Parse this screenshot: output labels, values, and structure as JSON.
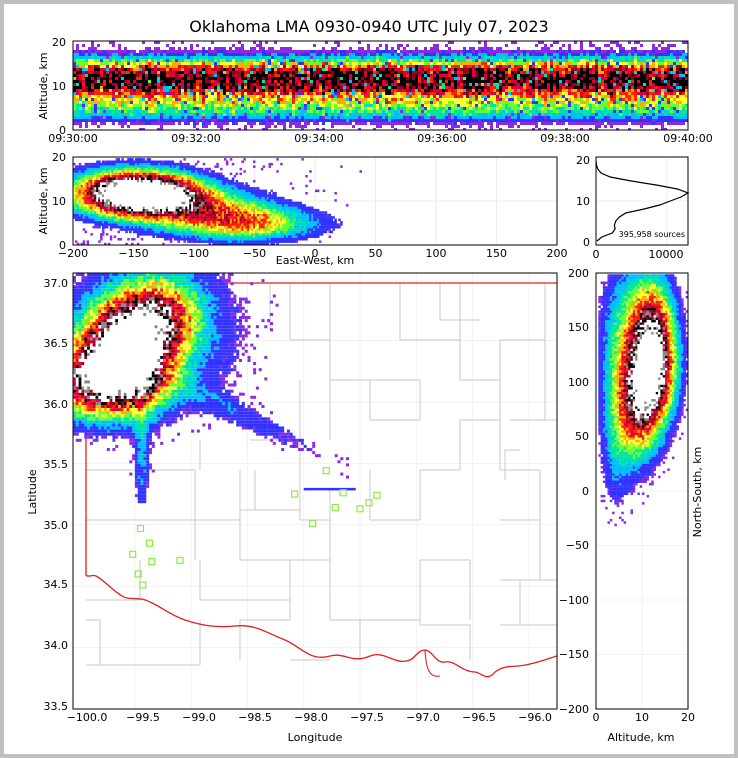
{
  "title": "Oklahoma LMA 0930-0940 UTC July 07, 2023",
  "chart_data": [
    {
      "panel": "time-altitude",
      "type": "heatmap",
      "ylabel": "Altitude, km",
      "ylim": [
        0,
        20
      ],
      "yticks": [
        "0",
        "10",
        "20"
      ],
      "xticks": [
        "09:30:00",
        "09:32:00",
        "09:34:00",
        "09:36:00",
        "09:38:00",
        "09:40:00"
      ],
      "density_profile_altitude_km": [
        0,
        2,
        4,
        6,
        8,
        10,
        12,
        14,
        16,
        18,
        20
      ],
      "density_profile_relative": [
        0.0,
        0.08,
        0.3,
        0.45,
        0.6,
        0.9,
        1.0,
        0.8,
        0.35,
        0.08,
        0.0
      ]
    },
    {
      "panel": "east-west-altitude",
      "type": "heatmap",
      "xlabel": "East-West, km",
      "ylabel": "Altitude, km",
      "xlim": [
        -200,
        200
      ],
      "ylim": [
        0,
        20
      ],
      "xticks": [
        "−200",
        "−150",
        "−100",
        "−50",
        "0",
        "50",
        "100",
        "150",
        "200"
      ],
      "yticks": [
        "0",
        "10",
        "20"
      ],
      "cores": [
        {
          "x": -140,
          "y": 12,
          "strength": 1.0
        },
        {
          "x": -165,
          "y": 12,
          "strength": 0.7
        },
        {
          "x": -110,
          "y": 10,
          "strength": 0.5
        },
        {
          "x": -60,
          "y": 7,
          "strength": 0.3
        }
      ]
    },
    {
      "panel": "altitude-histogram",
      "type": "line",
      "xticks": [
        "0",
        "10000"
      ],
      "yticks": [
        "0",
        "10",
        "20"
      ],
      "xlim": [
        0,
        13000
      ],
      "ylim": [
        0,
        20
      ],
      "annotation": "395,958 sources",
      "altitude_km": [
        0,
        1,
        2,
        3,
        4,
        5,
        6,
        7,
        8,
        9,
        10,
        11,
        12,
        13,
        14,
        15,
        16,
        17,
        18,
        19,
        20
      ],
      "counts": [
        150,
        800,
        2300,
        2700,
        2600,
        2800,
        3300,
        4200,
        6800,
        9000,
        10500,
        12000,
        13000,
        11500,
        8500,
        5000,
        2000,
        700,
        250,
        60,
        10
      ]
    },
    {
      "panel": "plan-view",
      "type": "heatmap",
      "xlabel": "Longitude",
      "ylabel": "Latitude",
      "xlim": [
        -100.05,
        -95.75
      ],
      "ylim": [
        33.5,
        37.05
      ],
      "xticks": [
        "−100.0",
        "−99.5",
        "−99.0",
        "−98.5",
        "−98.0",
        "−97.5",
        "−97.0",
        "−96.5",
        "−96.0"
      ],
      "yticks": [
        "33.5",
        "34.0",
        "34.5",
        "35.0",
        "35.5",
        "36.0",
        "36.5",
        "37.0"
      ],
      "cores": [
        {
          "lon": -99.55,
          "lat": 36.25,
          "strength": 1.0
        },
        {
          "lon": -99.9,
          "lat": 36.2,
          "strength": 0.85
        },
        {
          "lon": -99.6,
          "lat": 36.55,
          "strength": 0.8
        },
        {
          "lon": -99.3,
          "lat": 36.7,
          "strength": 0.6
        }
      ],
      "stations": [
        {
          "lon": -99.45,
          "lat": 34.97
        },
        {
          "lon": -99.37,
          "lat": 34.85
        },
        {
          "lon": -99.52,
          "lat": 34.76
        },
        {
          "lon": -99.35,
          "lat": 34.7
        },
        {
          "lon": -99.47,
          "lat": 34.6
        },
        {
          "lon": -99.43,
          "lat": 34.51
        },
        {
          "lon": -99.1,
          "lat": 34.71
        },
        {
          "lon": -97.8,
          "lat": 35.44
        },
        {
          "lon": -98.08,
          "lat": 35.25
        },
        {
          "lon": -97.92,
          "lat": 35.01
        },
        {
          "lon": -97.72,
          "lat": 35.14
        },
        {
          "lon": -97.65,
          "lat": 35.26
        },
        {
          "lon": -97.5,
          "lat": 35.13
        },
        {
          "lon": -97.42,
          "lat": 35.18
        },
        {
          "lon": -97.35,
          "lat": 35.24
        }
      ],
      "colors": {
        "border": "#e02020",
        "counties": "#c8c8c8",
        "station": "#88ee44"
      }
    },
    {
      "panel": "altitude-north-south",
      "type": "heatmap",
      "xlabel": "Altitude, km",
      "ylabel": "North-South, km",
      "xlim": [
        0,
        20
      ],
      "ylim": [
        -200,
        200
      ],
      "xticks": [
        "0",
        "10",
        "20"
      ],
      "yticks": [
        "−200",
        "−150",
        "−100",
        "−50",
        "0",
        "50",
        "100",
        "150",
        "200"
      ],
      "cores": [
        {
          "alt": 12,
          "y": 110,
          "strength": 1.0
        },
        {
          "alt": 12,
          "y": 155,
          "strength": 0.6
        },
        {
          "alt": 9,
          "y": 75,
          "strength": 0.5
        }
      ]
    }
  ]
}
